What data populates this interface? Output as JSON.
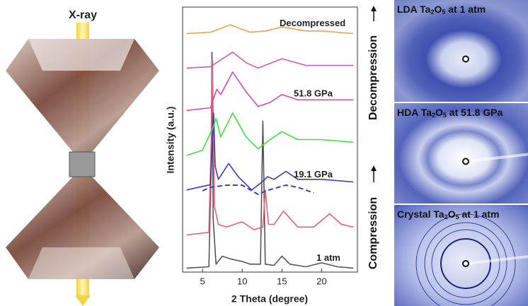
{
  "illustration": {
    "label": "X-ray"
  },
  "chart_data": {
    "type": "line",
    "xlabel": "2 Theta (degree)",
    "ylabel": "Intensity (a.u.)",
    "xlim": [
      2.5,
      24.5
    ],
    "xticks": [
      5,
      10,
      15,
      20
    ],
    "ylim": [
      0,
      100
    ],
    "legend": false,
    "grid": false,
    "series": [
      {
        "color": "#555555",
        "label": "1 atm",
        "x": [
          3,
          5.8,
          6.1,
          6.2,
          6.35,
          6.7,
          7.5,
          8.5,
          10,
          11,
          12.3,
          12.6,
          12.9,
          14,
          15,
          16,
          18,
          20,
          22,
          24
        ],
        "values": [
          1.5,
          2,
          40,
          83,
          20,
          3,
          6,
          5,
          4,
          3,
          3,
          57,
          3,
          2.5,
          6,
          3,
          2,
          3.5,
          2,
          1.5
        ]
      },
      {
        "color": "#e8607a",
        "x": [
          3,
          5.8,
          6.1,
          6.25,
          6.5,
          7,
          8,
          10,
          11.5,
          12.6,
          12.9,
          13.3,
          14,
          15.2,
          17,
          19,
          21,
          22.5,
          24
        ],
        "values": [
          14,
          15,
          50,
          80,
          25,
          18,
          17,
          19,
          16,
          17,
          31,
          18,
          18,
          23,
          17,
          17,
          22,
          18,
          17
        ]
      },
      {
        "color": "#4040c8",
        "dash": true,
        "x": [
          5,
          6,
          8,
          10,
          12,
          13,
          15.5,
          17,
          19
        ],
        "values": [
          30.7,
          32,
          32.8,
          32.8,
          29.3,
          30.7,
          32.8,
          32,
          29.9
        ]
      },
      {
        "color": "#3a3ac8",
        "label": "19.1 GPa",
        "x": [
          3,
          6,
          6.4,
          6.6,
          7,
          8.3,
          9.5,
          11.2,
          12.5,
          13.2,
          14,
          15.5,
          17,
          20,
          24
        ],
        "values": [
          31,
          33,
          60,
          40,
          35,
          41,
          36,
          31,
          34,
          36,
          35,
          38,
          35,
          35,
          34
        ]
      },
      {
        "color": "#3de13d",
        "x": [
          3,
          5,
          6.4,
          6.7,
          7.3,
          8.8,
          10.5,
          12,
          13.5,
          15,
          17,
          20,
          24
        ],
        "values": [
          44,
          46,
          55,
          58,
          51,
          60,
          51,
          46.5,
          50,
          53,
          50,
          50,
          49
        ]
      },
      {
        "color": "#d648b8",
        "label": "51.8 GPa",
        "x": [
          3,
          6,
          6.8,
          7.3,
          8.8,
          10.5,
          12,
          13.5,
          15,
          17,
          20,
          24
        ],
        "values": [
          61,
          62,
          69,
          67,
          75.5,
          68,
          62.5,
          64,
          67,
          65,
          65,
          65
        ]
      },
      {
        "color": "#d858a8",
        "x": [
          3,
          6,
          8.8,
          10.5,
          12,
          15,
          18,
          20,
          24
        ],
        "values": [
          77,
          77.5,
          83,
          79,
          77,
          80.5,
          78,
          78,
          78
        ]
      },
      {
        "color": "#f0a050",
        "label": "Decompressed",
        "x": [
          3,
          6,
          8.5,
          11,
          13,
          15,
          18,
          20,
          24
        ],
        "values": [
          90,
          90.5,
          93.3,
          90.5,
          91,
          92.5,
          91,
          91,
          90
        ]
      }
    ]
  },
  "diffraction_images": [
    {
      "label": [
        "LDA Ta",
        "2",
        "O",
        "5",
        " at 1 atm"
      ]
    },
    {
      "label": [
        "HDA Ta",
        "2",
        "O",
        "5",
        " at 51.8 GPa"
      ]
    },
    {
      "label": [
        "Crystal  Ta",
        "2",
        "O",
        "5",
        " at 1 atm"
      ]
    }
  ],
  "side_labels": [
    "Decompression",
    "Compression"
  ]
}
